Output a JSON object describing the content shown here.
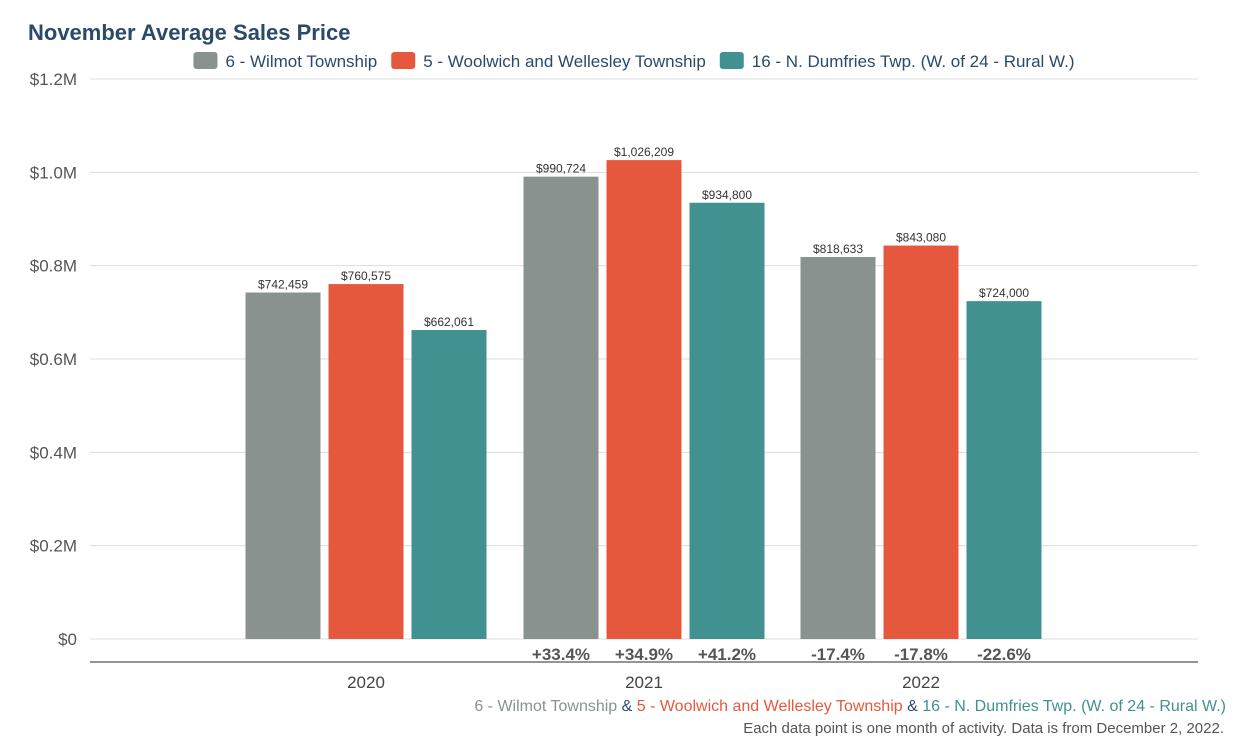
{
  "chart_data": {
    "type": "bar",
    "title": "November Average Sales Price",
    "categories": [
      "2020",
      "2021",
      "2022"
    ],
    "series": [
      {
        "name": "6 - Wilmot Township",
        "color": "#8a9290",
        "values": [
          742459,
          990724,
          818633
        ],
        "value_labels": [
          "$742,459",
          "$990,724",
          "$818,633"
        ],
        "change_labels": [
          "",
          "+33.4%",
          "-17.4%"
        ]
      },
      {
        "name": "5 - Woolwich and Wellesley Township",
        "color": "#e5583e",
        "values": [
          760575,
          1026209,
          843080
        ],
        "value_labels": [
          "$760,575",
          "$1,026,209",
          "$843,080"
        ],
        "change_labels": [
          "",
          "+34.9%",
          "-17.8%"
        ]
      },
      {
        "name": "16 - N. Dumfries Twp. (W. of 24 - Rural W.)",
        "color": "#419190",
        "values": [
          662061,
          934800,
          724000
        ],
        "value_labels": [
          "$662,061",
          "$934,800",
          "$724,000"
        ],
        "change_labels": [
          "",
          "+41.2%",
          "-22.6%"
        ]
      }
    ],
    "ylim": [
      0,
      1200000
    ],
    "yticks": [
      0,
      200000,
      400000,
      600000,
      800000,
      1000000,
      1200000
    ],
    "ytick_labels": [
      "$0",
      "$0.2M",
      "$0.4M",
      "$0.6M",
      "$0.8M",
      "$1.0M",
      "$1.2M"
    ],
    "grid": true,
    "legend_position": "top-center",
    "xlabel": "",
    "ylabel": ""
  },
  "footer": {
    "series_line": [
      {
        "text": "6 - Wilmot Township",
        "color": "#8a9290"
      },
      {
        "text": " & ",
        "color": "#2b4a6b"
      },
      {
        "text": "5 - Woolwich and Wellesley Township",
        "color": "#e5583e"
      },
      {
        "text": " & ",
        "color": "#2b4a6b"
      },
      {
        "text": "16 - N. Dumfries Twp. (W. of 24 - Rural W.)",
        "color": "#419190"
      }
    ],
    "note": "Each data point is one month of activity. Data is from December 2, 2022."
  }
}
